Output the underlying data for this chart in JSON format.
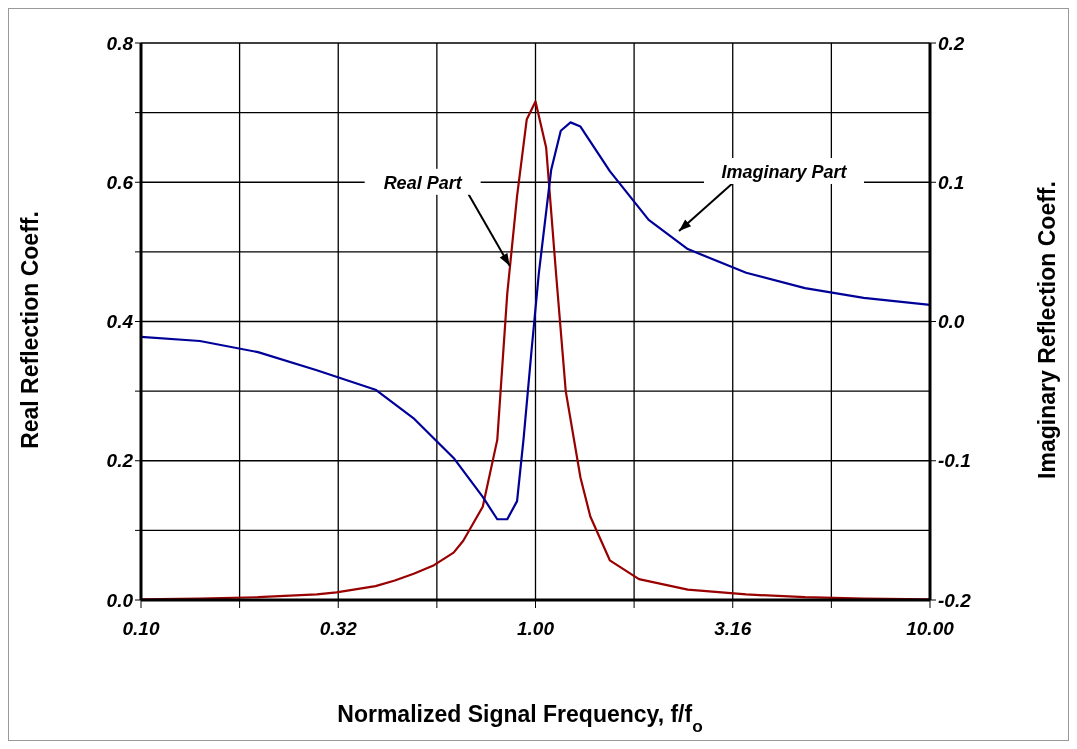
{
  "chart_data": {
    "type": "line",
    "xlabel": "Normalized Signal Frequency, f/f$_{o}$",
    "ylabel": "Real Reflection Coeff.",
    "y2label": "Imaginary Reflection Coeff.",
    "log": "x",
    "grid": true,
    "legend": false,
    "marker": "none",
    "line_style": "solid",
    "xlim": [
      0.1,
      10
    ],
    "xticks": [
      {
        "value": 0.1,
        "label": "0.10"
      },
      {
        "value": 0.1778,
        "label": null
      },
      {
        "value": 0.3162,
        "label": "0.32"
      },
      {
        "value": 0.5623,
        "label": null
      },
      {
        "value": 1,
        "label": "1.00"
      },
      {
        "value": 1.778,
        "label": null
      },
      {
        "value": 3.162,
        "label": "3.16"
      },
      {
        "value": 5.623,
        "label": null
      },
      {
        "value": 10,
        "label": "10.00"
      }
    ],
    "ylim": [
      0,
      0.8
    ],
    "yticks": [
      {
        "value": 0,
        "label": "0.0"
      },
      {
        "value": 0.1,
        "label": null
      },
      {
        "value": 0.2,
        "label": "0.2"
      },
      {
        "value": 0.3,
        "label": null
      },
      {
        "value": 0.4,
        "label": "0.4"
      },
      {
        "value": 0.5,
        "label": null
      },
      {
        "value": 0.6,
        "label": "0.6"
      },
      {
        "value": 0.7,
        "label": null
      },
      {
        "value": 0.8,
        "label": "0.8"
      }
    ],
    "y2lim": [
      -0.2,
      0.2
    ],
    "y2ticks": [
      {
        "value": -0.2,
        "label": "-0.2"
      },
      {
        "value": -0.1,
        "label": "-0.1"
      },
      {
        "value": 0,
        "label": "0.0"
      },
      {
        "value": 0.1,
        "label": "0.1"
      },
      {
        "value": 0.2,
        "label": "0.2"
      }
    ],
    "series": [
      {
        "color": "#990000",
        "x": [
          0.1,
          0.141,
          0.198,
          0.279,
          0.313,
          0.393,
          0.44,
          0.493,
          0.553,
          0.62,
          0.656,
          0.735,
          0.8,
          0.848,
          0.898,
          0.95,
          1.0,
          1.064,
          1.127,
          1.193,
          1.3,
          1.377,
          1.543,
          1.829,
          2.432,
          3.42,
          4.82,
          5.71,
          6.79,
          10
        ],
        "values": [
          0.001,
          0.002,
          0.004,
          0.008,
          0.011,
          0.02,
          0.028,
          0.038,
          0.05,
          0.068,
          0.085,
          0.134,
          0.23,
          0.44,
          0.58,
          0.69,
          0.716,
          0.65,
          0.47,
          0.3,
          0.176,
          0.12,
          0.057,
          0.03,
          0.015,
          0.008,
          0.004,
          0.003,
          0.002,
          0.001
        ]
      },
      {
        "color": "#000099",
        "axis": "y2",
        "x": [
          0.1,
          0.141,
          0.198,
          0.279,
          0.393,
          0.493,
          0.62,
          0.735,
          0.8,
          0.848,
          0.898,
          0.933,
          0.977,
          1.02,
          1.096,
          1.159,
          1.227,
          1.3,
          1.543,
          1.936,
          2.432,
          3.42,
          4.82,
          6.79,
          10
        ],
        "values": [
          -0.011,
          -0.014,
          -0.022,
          -0.035,
          -0.049,
          -0.07,
          -0.098,
          -0.126,
          -0.142,
          -0.142,
          -0.129,
          -0.084,
          -0.021,
          0.035,
          0.109,
          0.137,
          0.143,
          0.14,
          0.108,
          0.073,
          0.052,
          0.035,
          0.024,
          0.017,
          0.012
        ]
      }
    ],
    "annotations": [
      {
        "text": "Real Part",
        "x": 0.86,
        "y": 0.48
      },
      "Imaginary Part"
    ]
  }
}
